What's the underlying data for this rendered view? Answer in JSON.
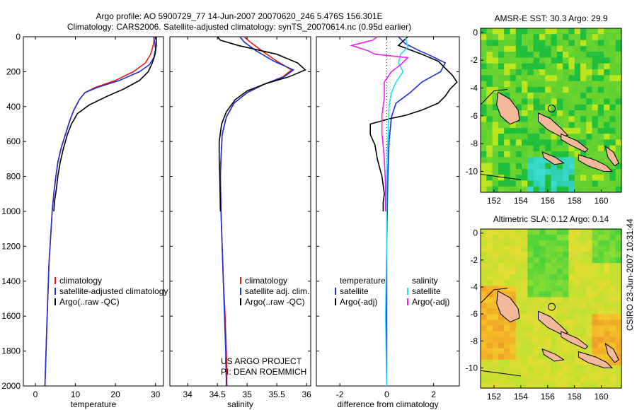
{
  "header": {
    "title_line1": "Argo profile: AO 5900729_77 14-Jun-2007 20070620_246 5.476S 156.301E",
    "title_line2": "Climatology: CARS2006. Satellite-adjusted climatology: synTS_20070614.nc (0.95d earlier)"
  },
  "side_label": "CSIRO 23-Jun-2007 10:31:44",
  "project": {
    "line1": "US ARGO PROJECT",
    "line2": "PI: DEAN ROEMMICH"
  },
  "colors": {
    "clim": "#e8190f",
    "sat": "#1c2fd8",
    "argo": "#000000",
    "sal_sat": "#1ee0f0",
    "sal_argo": "#ee22ee"
  },
  "chart_data": [
    {
      "type": "line",
      "id": "temperature",
      "xlabel": "temperature",
      "ylabel": "",
      "xlim": [
        -3,
        32
      ],
      "ylim": [
        2000,
        0
      ],
      "xticks": [
        0,
        10,
        20,
        30
      ],
      "yticks": [
        0,
        200,
        400,
        600,
        800,
        1000,
        1200,
        1400,
        1600,
        1800,
        2000
      ],
      "legend": [
        "climatology",
        "satellite-adjusted climatology",
        "Argo(..raw -QC)"
      ],
      "series": [
        {
          "name": "climatology",
          "color": "#e8190f",
          "points": [
            [
              29.7,
              0
            ],
            [
              29.6,
              30
            ],
            [
              29.3,
              60
            ],
            [
              28.8,
              100
            ],
            [
              27.5,
              150
            ],
            [
              24.5,
              200
            ],
            [
              20,
              250
            ],
            [
              15,
              290
            ],
            [
              12.4,
              320
            ],
            [
              11,
              360
            ],
            [
              9.6,
              420
            ],
            [
              8.6,
              480
            ],
            [
              7.5,
              560
            ],
            [
              6.4,
              640
            ],
            [
              5.6,
              720
            ],
            [
              5,
              820
            ],
            [
              4.6,
              900
            ],
            [
              4.2,
              1000
            ],
            [
              3.8,
              1150
            ],
            [
              3.4,
              1300
            ],
            [
              3.1,
              1500
            ],
            [
              2.8,
              1700
            ],
            [
              2.6,
              1850
            ],
            [
              2.4,
              2000
            ]
          ]
        },
        {
          "name": "satellite-adjusted climatology",
          "color": "#1c2fd8",
          "points": [
            [
              29.5,
              0
            ],
            [
              29.8,
              30
            ],
            [
              30,
              70
            ],
            [
              29.6,
              120
            ],
            [
              28.5,
              160
            ],
            [
              26,
              200
            ],
            [
              21,
              250
            ],
            [
              15.5,
              290
            ],
            [
              12.4,
              320
            ],
            [
              11,
              360
            ],
            [
              9.6,
              420
            ],
            [
              8.6,
              480
            ],
            [
              7.5,
              560
            ],
            [
              6.4,
              640
            ],
            [
              5.6,
              720
            ],
            [
              5,
              820
            ],
            [
              4.6,
              900
            ],
            [
              4.2,
              1000
            ],
            [
              3.8,
              1150
            ],
            [
              3.4,
              1300
            ],
            [
              3.1,
              1500
            ],
            [
              2.8,
              1700
            ],
            [
              2.6,
              1850
            ],
            [
              2.4,
              2000
            ]
          ]
        },
        {
          "name": "Argo(..raw -QC)",
          "color": "#000000",
          "points": [
            [
              30.2,
              0
            ],
            [
              30.2,
              50
            ],
            [
              29.9,
              100
            ],
            [
              29.2,
              150
            ],
            [
              28.2,
              200
            ],
            [
              26,
              250
            ],
            [
              22,
              300
            ],
            [
              18,
              340
            ],
            [
              13.5,
              390
            ],
            [
              10.5,
              440
            ],
            [
              9,
              500
            ],
            [
              8,
              560
            ],
            [
              7,
              640
            ],
            [
              6.2,
              720
            ],
            [
              5.6,
              800
            ],
            [
              5.2,
              880
            ],
            [
              4.8,
              940
            ],
            [
              4.6,
              1000
            ]
          ]
        }
      ]
    },
    {
      "type": "line",
      "id": "salinity",
      "xlabel": "salinity",
      "ylabel": "",
      "xlim": [
        33.7,
        36.07
      ],
      "ylim": [
        2000,
        0
      ],
      "xticks": [
        34,
        34.5,
        35,
        35.5,
        36
      ],
      "legend": [
        "climatology",
        "satellite adj. clim.",
        "Argo(..raw -QC)"
      ],
      "series": [
        {
          "name": "climatology",
          "color": "#e8190f",
          "points": [
            [
              34.95,
              0
            ],
            [
              35.05,
              30
            ],
            [
              35.25,
              80
            ],
            [
              35.5,
              140
            ],
            [
              35.75,
              190
            ],
            [
              35.6,
              230
            ],
            [
              35.3,
              270
            ],
            [
              35,
              320
            ],
            [
              34.78,
              380
            ],
            [
              34.65,
              460
            ],
            [
              34.58,
              560
            ],
            [
              34.56,
              700
            ],
            [
              34.55,
              800
            ],
            [
              34.56,
              1000
            ],
            [
              34.58,
              1200
            ],
            [
              34.6,
              1400
            ],
            [
              34.63,
              1600
            ],
            [
              34.65,
              1800
            ],
            [
              34.66,
              2000
            ]
          ]
        },
        {
          "name": "satellite adj. clim.",
          "color": "#1c2fd8",
          "points": [
            [
              34.88,
              0
            ],
            [
              34.95,
              30
            ],
            [
              35.15,
              80
            ],
            [
              35.45,
              140
            ],
            [
              35.78,
              190
            ],
            [
              35.62,
              230
            ],
            [
              35.3,
              270
            ],
            [
              35,
              320
            ],
            [
              34.78,
              380
            ],
            [
              34.65,
              460
            ],
            [
              34.58,
              560
            ],
            [
              34.56,
              700
            ],
            [
              34.55,
              800
            ],
            [
              34.56,
              1000
            ],
            [
              34.58,
              1200
            ],
            [
              34.6,
              1400
            ],
            [
              34.62,
              1600
            ],
            [
              34.64,
              1800
            ],
            [
              34.65,
              2000
            ]
          ]
        },
        {
          "name": "Argo(..raw -QC)",
          "color": "#000000",
          "points": [
            [
              34.5,
              0
            ],
            [
              34.55,
              20
            ],
            [
              34.85,
              50
            ],
            [
              35.5,
              100
            ],
            [
              35.85,
              150
            ],
            [
              35.98,
              190
            ],
            [
              35.7,
              230
            ],
            [
              35.3,
              270
            ],
            [
              35,
              310
            ],
            [
              34.8,
              360
            ],
            [
              34.65,
              430
            ],
            [
              34.57,
              500
            ],
            [
              34.53,
              600
            ],
            [
              34.53,
              700
            ],
            [
              34.54,
              800
            ],
            [
              34.55,
              1000
            ]
          ]
        }
      ]
    },
    {
      "type": "line",
      "id": "difference",
      "xlabel": "difference from climatology",
      "ylabel": "",
      "xlim": [
        -3,
        3.1
      ],
      "ylim": [
        2000,
        0
      ],
      "xticks": [
        -2,
        0,
        2
      ],
      "legend_temperature": {
        "title": "temperature",
        "items": [
          "satellite",
          "Argo(-adj)"
        ]
      },
      "legend_salinity": {
        "title": "salinity",
        "items": [
          "satellite",
          "Argo(-adj)"
        ]
      },
      "series": [
        {
          "name": "temperature satellite",
          "color": "#1c2fd8",
          "points": [
            [
              0.5,
              0
            ],
            [
              0.8,
              40
            ],
            [
              1.4,
              80
            ],
            [
              1.9,
              110
            ],
            [
              2.5,
              150
            ],
            [
              2.3,
              200
            ],
            [
              1.5,
              260
            ],
            [
              1,
              320
            ],
            [
              0.4,
              380
            ],
            [
              0.2,
              460
            ],
            [
              0.1,
              600
            ],
            [
              0.05,
              800
            ],
            [
              0,
              1200
            ],
            [
              0,
              1600
            ],
            [
              0,
              2000
            ]
          ]
        },
        {
          "name": "temperature Argo(-adj)",
          "color": "#000000",
          "points": [
            [
              0.9,
              0
            ],
            [
              0.5,
              50
            ],
            [
              1.5,
              100
            ],
            [
              2.2,
              140
            ],
            [
              2.5,
              180
            ],
            [
              2.8,
              220
            ],
            [
              3,
              260
            ],
            [
              2.7,
              300
            ],
            [
              2.5,
              340
            ],
            [
              2.2,
              380
            ],
            [
              1.5,
              420
            ],
            [
              0.8,
              450
            ],
            [
              0.1,
              470
            ],
            [
              -0.7,
              500
            ],
            [
              -0.7,
              560
            ],
            [
              -0.5,
              620
            ],
            [
              -0.4,
              700
            ],
            [
              -0.2,
              800
            ],
            [
              -0.1,
              900
            ],
            [
              -0.15,
              950
            ],
            [
              -0.15,
              1000
            ]
          ]
        },
        {
          "name": "salinity satellite",
          "color": "#1ee0f0",
          "points": [
            [
              0.8,
              0
            ],
            [
              0.9,
              60
            ],
            [
              0.6,
              100
            ],
            [
              0.5,
              150
            ],
            [
              0.7,
              200
            ],
            [
              0.4,
              260
            ],
            [
              0.2,
              320
            ],
            [
              0.1,
              400
            ],
            [
              0.05,
              600
            ],
            [
              0,
              800
            ],
            [
              0,
              1200
            ],
            [
              -0.05,
              1600
            ],
            [
              0,
              2000
            ]
          ]
        },
        {
          "name": "salinity Argo(-adj)",
          "color": "#ee22ee",
          "points": [
            [
              -0.4,
              0
            ],
            [
              -0.6,
              20
            ],
            [
              -1.5,
              50
            ],
            [
              -0.8,
              80
            ],
            [
              -0.5,
              100
            ],
            [
              0.9,
              120
            ],
            [
              0.6,
              160
            ],
            [
              0.2,
              200
            ],
            [
              -0.1,
              260
            ],
            [
              -0.1,
              350
            ],
            [
              -0.2,
              450
            ],
            [
              -0.2,
              550
            ],
            [
              -0.1,
              700
            ],
            [
              -0.05,
              850
            ],
            [
              -0.05,
              1000
            ]
          ]
        }
      ]
    },
    {
      "type": "heatmap",
      "id": "sst_map",
      "title": "AMSR-E SST: 30.3 Argo: 29.9",
      "xlim": [
        151,
        161.5
      ],
      "ylim": [
        -11.5,
        0.3
      ],
      "xticks": [
        152,
        154,
        156,
        158,
        160
      ],
      "yticks": [
        0,
        -2,
        -4,
        -6,
        -8,
        -10
      ],
      "marker": {
        "lon": 156.3,
        "lat": -5.476
      }
    },
    {
      "type": "heatmap",
      "id": "sla_map",
      "title": "Altimetric SLA: 0.12 Argo: 0.14",
      "xlim": [
        151,
        161.5
      ],
      "ylim": [
        -11.5,
        0.3
      ],
      "xticks": [
        152,
        154,
        156,
        158,
        160
      ],
      "yticks": [
        0,
        -2,
        -4,
        -6,
        -8,
        -10
      ],
      "marker": {
        "lon": 156.3,
        "lat": -5.476
      }
    }
  ]
}
